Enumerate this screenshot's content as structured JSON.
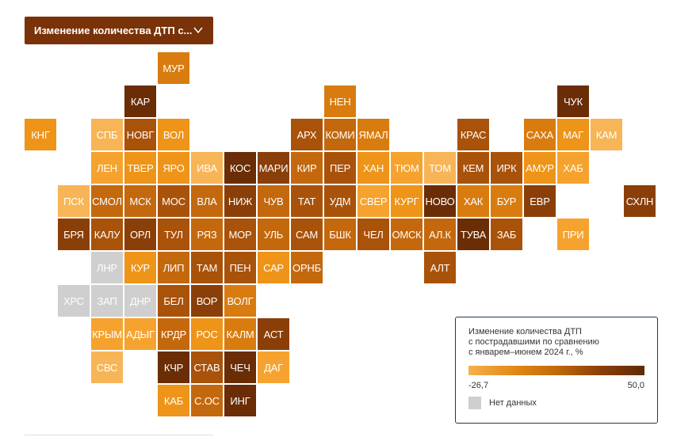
{
  "dropdown": {
    "label": "Изменение количества ДТП с...",
    "icon": "chevron-down-icon"
  },
  "colors": {
    "L1": "#f7b557",
    "L2": "#f5a32e",
    "L3": "#ee9418",
    "L4": "#d97c0f",
    "D1": "#c4680d",
    "D2": "#a9520a",
    "D3": "#8a3f08",
    "D4": "#6a2d05",
    "N": "#cfcfcf"
  },
  "tiles": [
    {
      "label": "МУР",
      "c": "L4",
      "col": 4,
      "row": 0
    },
    {
      "label": "КАР",
      "c": "D4",
      "col": 3,
      "row": 1
    },
    {
      "label": "НЕН",
      "c": "L4",
      "col": 9,
      "row": 1
    },
    {
      "label": "ЧУК",
      "c": "D4",
      "col": 16,
      "row": 1
    },
    {
      "label": "КНГ",
      "c": "L3",
      "col": 0,
      "row": 2
    },
    {
      "label": "СПБ",
      "c": "L1",
      "col": 2,
      "row": 2
    },
    {
      "label": "НОВГ",
      "c": "D2",
      "col": 3,
      "row": 2
    },
    {
      "label": "ВОЛ",
      "c": "L3",
      "col": 4,
      "row": 2
    },
    {
      "label": "АРХ",
      "c": "D2",
      "col": 8,
      "row": 2
    },
    {
      "label": "КОМИ",
      "c": "D1",
      "col": 9,
      "row": 2
    },
    {
      "label": "ЯМАЛ",
      "c": "L4",
      "col": 10,
      "row": 2
    },
    {
      "label": "КРАС",
      "c": "D2",
      "col": 13,
      "row": 2
    },
    {
      "label": "САХА",
      "c": "L4",
      "col": 15,
      "row": 2
    },
    {
      "label": "МАГ",
      "c": "L3",
      "col": 16,
      "row": 2
    },
    {
      "label": "КАМ",
      "c": "L1",
      "col": 17,
      "row": 2
    },
    {
      "label": "ЛЕН",
      "c": "L2",
      "col": 2,
      "row": 3
    },
    {
      "label": "ТВЕР",
      "c": "L3",
      "col": 3,
      "row": 3
    },
    {
      "label": "ЯРО",
      "c": "L3",
      "col": 4,
      "row": 3
    },
    {
      "label": "ИВА",
      "c": "L1",
      "col": 5,
      "row": 3
    },
    {
      "label": "КОС",
      "c": "D4",
      "col": 6,
      "row": 3
    },
    {
      "label": "МАРИ",
      "c": "D3",
      "col": 7,
      "row": 3
    },
    {
      "label": "КИР",
      "c": "D1",
      "col": 8,
      "row": 3
    },
    {
      "label": "ПЕР",
      "c": "D2",
      "col": 9,
      "row": 3
    },
    {
      "label": "ХАН",
      "c": "L3",
      "col": 10,
      "row": 3
    },
    {
      "label": "ТЮМ",
      "c": "L2",
      "col": 11,
      "row": 3
    },
    {
      "label": "ТОМ",
      "c": "L1",
      "col": 12,
      "row": 3
    },
    {
      "label": "КЕМ",
      "c": "D2",
      "col": 13,
      "row": 3
    },
    {
      "label": "ИРК",
      "c": "D2",
      "col": 14,
      "row": 3
    },
    {
      "label": "АМУР",
      "c": "L3",
      "col": 15,
      "row": 3
    },
    {
      "label": "ХАБ",
      "c": "L2",
      "col": 16,
      "row": 3
    },
    {
      "label": "ПСК",
      "c": "L1",
      "col": 1,
      "row": 4
    },
    {
      "label": "СМОЛ",
      "c": "D1",
      "col": 2,
      "row": 4
    },
    {
      "label": "МСК",
      "c": "D1",
      "col": 3,
      "row": 4
    },
    {
      "label": "МОС",
      "c": "D2",
      "col": 4,
      "row": 4
    },
    {
      "label": "ВЛА",
      "c": "D1",
      "col": 5,
      "row": 4
    },
    {
      "label": "НИЖ",
      "c": "D3",
      "col": 6,
      "row": 4
    },
    {
      "label": "ЧУВ",
      "c": "D1",
      "col": 7,
      "row": 4
    },
    {
      "label": "ТАТ",
      "c": "D2",
      "col": 8,
      "row": 4
    },
    {
      "label": "УДМ",
      "c": "D2",
      "col": 9,
      "row": 4
    },
    {
      "label": "СВЕР",
      "c": "L2",
      "col": 10,
      "row": 4
    },
    {
      "label": "КУРГ",
      "c": "L3",
      "col": 11,
      "row": 4
    },
    {
      "label": "НОВО",
      "c": "D4",
      "col": 12,
      "row": 4
    },
    {
      "label": "ХАК",
      "c": "L4",
      "col": 13,
      "row": 4
    },
    {
      "label": "БУР",
      "c": "L4",
      "col": 14,
      "row": 4
    },
    {
      "label": "ЕВР",
      "c": "D3",
      "col": 15,
      "row": 4
    },
    {
      "label": "СХЛН",
      "c": "D3",
      "col": 18,
      "row": 4
    },
    {
      "label": "БРЯ",
      "c": "D3",
      "col": 1,
      "row": 5
    },
    {
      "label": "КАЛУ",
      "c": "D2",
      "col": 2,
      "row": 5
    },
    {
      "label": "ОРЛ",
      "c": "D3",
      "col": 3,
      "row": 5
    },
    {
      "label": "ТУЛ",
      "c": "D2",
      "col": 4,
      "row": 5
    },
    {
      "label": "РЯЗ",
      "c": "D1",
      "col": 5,
      "row": 5
    },
    {
      "label": "МОР",
      "c": "D2",
      "col": 6,
      "row": 5
    },
    {
      "label": "УЛЬ",
      "c": "D1",
      "col": 7,
      "row": 5
    },
    {
      "label": "САМ",
      "c": "D2",
      "col": 8,
      "row": 5
    },
    {
      "label": "БШК",
      "c": "D1",
      "col": 9,
      "row": 5
    },
    {
      "label": "ЧЕЛ",
      "c": "D2",
      "col": 10,
      "row": 5
    },
    {
      "label": "ОМСК",
      "c": "D1",
      "col": 11,
      "row": 5
    },
    {
      "label": "АЛ.К",
      "c": "D1",
      "col": 12,
      "row": 5
    },
    {
      "label": "ТУВА",
      "c": "D4",
      "col": 13,
      "row": 5
    },
    {
      "label": "ЗАБ",
      "c": "D2",
      "col": 14,
      "row": 5
    },
    {
      "label": "ПРИ",
      "c": "L2",
      "col": 16,
      "row": 5
    },
    {
      "label": "ЛНР",
      "c": "N",
      "col": 2,
      "row": 6
    },
    {
      "label": "КУР",
      "c": "L3",
      "col": 3,
      "row": 6
    },
    {
      "label": "ЛИП",
      "c": "D1",
      "col": 4,
      "row": 6
    },
    {
      "label": "ТАМ",
      "c": "D2",
      "col": 5,
      "row": 6
    },
    {
      "label": "ПЕН",
      "c": "D2",
      "col": 6,
      "row": 6
    },
    {
      "label": "САР",
      "c": "L3",
      "col": 7,
      "row": 6
    },
    {
      "label": "ОРНБ",
      "c": "D1",
      "col": 8,
      "row": 6
    },
    {
      "label": "АЛТ",
      "c": "D2",
      "col": 12,
      "row": 6
    },
    {
      "label": "ХРС",
      "c": "N",
      "col": 1,
      "row": 7
    },
    {
      "label": "ЗАП",
      "c": "N",
      "col": 2,
      "row": 7
    },
    {
      "label": "ДНР",
      "c": "N",
      "col": 3,
      "row": 7
    },
    {
      "label": "БЕЛ",
      "c": "D2",
      "col": 4,
      "row": 7
    },
    {
      "label": "ВОР",
      "c": "D3",
      "col": 5,
      "row": 7
    },
    {
      "label": "ВОЛГ",
      "c": "L4",
      "col": 6,
      "row": 7
    },
    {
      "label": "КРЫМ",
      "c": "L2",
      "col": 2,
      "row": 8
    },
    {
      "label": "АДЫГ",
      "c": "L2",
      "col": 3,
      "row": 8
    },
    {
      "label": "КРДР",
      "c": "D1",
      "col": 4,
      "row": 8
    },
    {
      "label": "РОС",
      "c": "L3",
      "col": 5,
      "row": 8
    },
    {
      "label": "КАЛМ",
      "c": "L4",
      "col": 6,
      "row": 8
    },
    {
      "label": "АСТ",
      "c": "D3",
      "col": 7,
      "row": 8
    },
    {
      "label": "СВС",
      "c": "L1",
      "col": 2,
      "row": 9
    },
    {
      "label": "КЧР",
      "c": "D4",
      "col": 4,
      "row": 9
    },
    {
      "label": "СТАВ",
      "c": "D2",
      "col": 5,
      "row": 9
    },
    {
      "label": "ЧЕЧ",
      "c": "D4",
      "col": 6,
      "row": 9
    },
    {
      "label": "ДАГ",
      "c": "L2",
      "col": 7,
      "row": 9
    },
    {
      "label": "КАБ",
      "c": "L3",
      "col": 4,
      "row": 10
    },
    {
      "label": "С.ОС",
      "c": "D1",
      "col": 5,
      "row": 10
    },
    {
      "label": "ИНГ",
      "c": "D4",
      "col": 6,
      "row": 10
    }
  ],
  "legend": {
    "title_lines": [
      "Изменение количества ДТП",
      "с пострадавшими по сравнению",
      "с январем–июнем 2024 г., %"
    ],
    "min": "-26,7",
    "max": "50,0",
    "no_data": "Нет данных"
  }
}
